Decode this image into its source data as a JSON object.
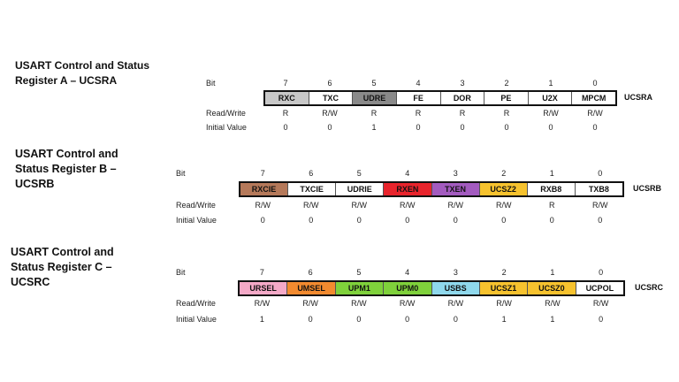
{
  "registers": [
    {
      "title_lines": [
        "USART Control and Status",
        "Register A – UCSRA"
      ],
      "reg_name": "UCSRA",
      "row_labels": {
        "bit": "Bit",
        "rw": "Read/Write",
        "init": "Initial Value"
      },
      "bit_numbers": [
        "7",
        "6",
        "5",
        "4",
        "3",
        "2",
        "1",
        "0"
      ],
      "cells": [
        {
          "name": "RXC",
          "color": "#c8c8c8"
        },
        {
          "name": "TXC",
          "color": "#ffffff"
        },
        {
          "name": "UDRE",
          "color": "#8a8a8a"
        },
        {
          "name": "FE",
          "color": "#ffffff"
        },
        {
          "name": "DOR",
          "color": "#ffffff"
        },
        {
          "name": "PE",
          "color": "#ffffff"
        },
        {
          "name": "U2X",
          "color": "#ffffff"
        },
        {
          "name": "MPCM",
          "color": "#ffffff"
        }
      ],
      "rw": [
        "R",
        "R/W",
        "R",
        "R",
        "R",
        "R",
        "R/W",
        "R/W"
      ],
      "init": [
        "0",
        "0",
        "1",
        "0",
        "0",
        "0",
        "0",
        "0"
      ]
    },
    {
      "title_lines": [
        "USART Control and",
        "Status Register B –",
        "UCSRB"
      ],
      "reg_name": "UCSRB",
      "row_labels": {
        "bit": "Bit",
        "rw": "Read/Write",
        "init": "Initial Value"
      },
      "bit_numbers": [
        "7",
        "6",
        "5",
        "4",
        "3",
        "2",
        "1",
        "0"
      ],
      "cells": [
        {
          "name": "RXCIE",
          "color": "#b5795a"
        },
        {
          "name": "TXCIE",
          "color": "#ffffff"
        },
        {
          "name": "UDRIE",
          "color": "#ffffff"
        },
        {
          "name": "RXEN",
          "color": "#e8242c"
        },
        {
          "name": "TXEN",
          "color": "#a35bbf"
        },
        {
          "name": "UCSZ2",
          "color": "#f6c22e"
        },
        {
          "name": "RXB8",
          "color": "#ffffff"
        },
        {
          "name": "TXB8",
          "color": "#ffffff"
        }
      ],
      "rw": [
        "R/W",
        "R/W",
        "R/W",
        "R/W",
        "R/W",
        "R/W",
        "R",
        "R/W"
      ],
      "init": [
        "0",
        "0",
        "0",
        "0",
        "0",
        "0",
        "0",
        "0"
      ]
    },
    {
      "title_lines": [
        "USART Control and",
        "Status Register C –",
        "UCSRC"
      ],
      "reg_name": "UCSRC",
      "row_labels": {
        "bit": "Bit",
        "rw": "Read/Write",
        "init": "Initial Value"
      },
      "bit_numbers": [
        "7",
        "6",
        "5",
        "4",
        "3",
        "2",
        "1",
        "0"
      ],
      "cells": [
        {
          "name": "URSEL",
          "color": "#f4a9c7"
        },
        {
          "name": "UMSEL",
          "color": "#f28a2f"
        },
        {
          "name": "UPM1",
          "color": "#7fd13b"
        },
        {
          "name": "UPM0",
          "color": "#7fd13b"
        },
        {
          "name": "USBS",
          "color": "#8fd8ec"
        },
        {
          "name": "UCSZ1",
          "color": "#f6c22e"
        },
        {
          "name": "UCSZ0",
          "color": "#f6c22e"
        },
        {
          "name": "UCPOL",
          "color": "#ffffff"
        }
      ],
      "rw": [
        "R/W",
        "R/W",
        "R/W",
        "R/W",
        "R/W",
        "R/W",
        "R/W",
        "R/W"
      ],
      "init": [
        "1",
        "0",
        "0",
        "0",
        "0",
        "1",
        "1",
        "0"
      ]
    }
  ]
}
